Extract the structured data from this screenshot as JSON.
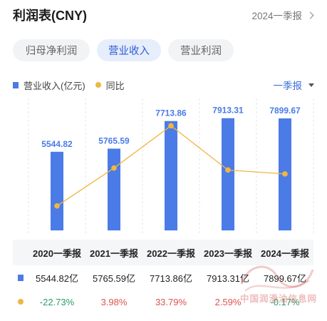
{
  "header": {
    "title": "利润表(CNY)",
    "period_link": "2024一季报"
  },
  "tabs": [
    {
      "label": "归母净利润",
      "active": false
    },
    {
      "label": "营业收入",
      "active": true
    },
    {
      "label": "营业利润",
      "active": false
    }
  ],
  "legend": {
    "bar_label": "营业收入(亿元)",
    "line_label": "同比"
  },
  "period_select": "一季报",
  "colors": {
    "bar": "#4a7be6",
    "line": "#f0b63f",
    "accent": "#2d5bd8",
    "negative": "#2a9d6a",
    "positive": "#e0524f"
  },
  "chart_data": {
    "type": "bar",
    "categories": [
      "2020一季报",
      "2021一季报",
      "2022一季报",
      "2023一季报",
      "2024一季报"
    ],
    "series": [
      {
        "name": "营业收入(亿元)",
        "type": "bar",
        "values": [
          5544.82,
          5765.59,
          7713.86,
          7913.31,
          7899.67
        ],
        "labels": [
          "5544.82",
          "5765.59",
          "7713.86",
          "7913.31",
          "7899.67"
        ]
      },
      {
        "name": "同比",
        "type": "line",
        "values": [
          -22.73,
          3.98,
          33.79,
          2.59,
          -0.17
        ]
      }
    ],
    "ylim": [
      0,
      8200
    ],
    "y2lim": [
      -40,
      42
    ]
  },
  "table": {
    "headers": [
      "2020一季报",
      "2021一季报",
      "2022一季报",
      "2023一季报",
      "2024一季报"
    ],
    "revenue": [
      "5544.82亿",
      "5765.59亿",
      "7713.86亿",
      "7913.31亿",
      "7899.67亿"
    ],
    "yoy": [
      "-22.73%",
      "3.98%",
      "33.79%",
      "2.59%",
      "-0.17%"
    ]
  },
  "watermark": {
    "text": "中国润滑油信息网"
  }
}
